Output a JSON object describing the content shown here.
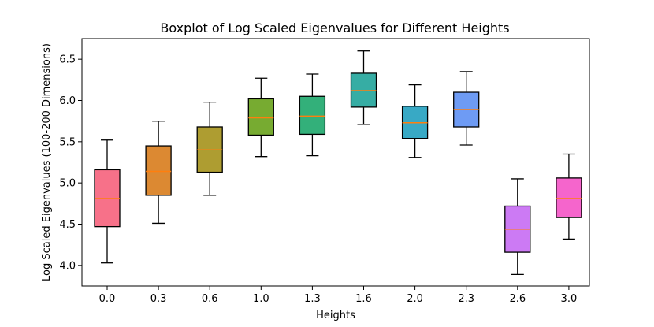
{
  "chart_data": {
    "type": "boxplot",
    "title": "Boxplot of Log Scaled Eigenvalues for Different Heights",
    "xlabel": "Heights",
    "ylabel": "Log Scaled Eigenvalues (100-200 Dimensions)",
    "ylim": [
      3.75,
      6.75
    ],
    "yticks": [
      "4.0",
      "4.5",
      "5.0",
      "5.5",
      "6.0",
      "6.5"
    ],
    "grid": false,
    "median_color": "#ff7f0e",
    "categories": [
      "0.0",
      "0.3",
      "0.6",
      "1.0",
      "1.3",
      "1.6",
      "2.0",
      "2.3",
      "2.6",
      "3.0"
    ],
    "boxes": [
      {
        "category": "0.0",
        "whisker_low": 4.03,
        "q1": 4.47,
        "median": 4.81,
        "q3": 5.16,
        "whisker_high": 5.52,
        "color": "#f77189"
      },
      {
        "category": "0.3",
        "whisker_low": 4.51,
        "q1": 4.85,
        "median": 5.14,
        "q3": 5.45,
        "whisker_high": 5.75,
        "color": "#dc8932"
      },
      {
        "category": "0.6",
        "whisker_low": 4.85,
        "q1": 5.13,
        "median": 5.4,
        "q3": 5.68,
        "whisker_high": 5.98,
        "color": "#ae9d31"
      },
      {
        "category": "1.0",
        "whisker_low": 5.32,
        "q1": 5.58,
        "median": 5.79,
        "q3": 6.02,
        "whisker_high": 6.27,
        "color": "#77ab31"
      },
      {
        "category": "1.3",
        "whisker_low": 5.33,
        "q1": 5.59,
        "median": 5.81,
        "q3": 6.05,
        "whisker_high": 6.32,
        "color": "#33b07a"
      },
      {
        "category": "1.6",
        "whisker_low": 5.71,
        "q1": 5.92,
        "median": 6.12,
        "q3": 6.33,
        "whisker_high": 6.6,
        "color": "#36ada4"
      },
      {
        "category": "2.0",
        "whisker_low": 5.31,
        "q1": 5.54,
        "median": 5.73,
        "q3": 5.93,
        "whisker_high": 6.19,
        "color": "#38a9c5"
      },
      {
        "category": "2.3",
        "whisker_low": 5.46,
        "q1": 5.68,
        "median": 5.89,
        "q3": 6.1,
        "whisker_high": 6.35,
        "color": "#6e9bf4"
      },
      {
        "category": "2.6",
        "whisker_low": 3.89,
        "q1": 4.16,
        "median": 4.44,
        "q3": 4.72,
        "whisker_high": 5.05,
        "color": "#cc7af4"
      },
      {
        "category": "3.0",
        "whisker_low": 4.32,
        "q1": 4.58,
        "median": 4.81,
        "q3": 5.06,
        "whisker_high": 5.35,
        "color": "#f565cc"
      }
    ]
  }
}
